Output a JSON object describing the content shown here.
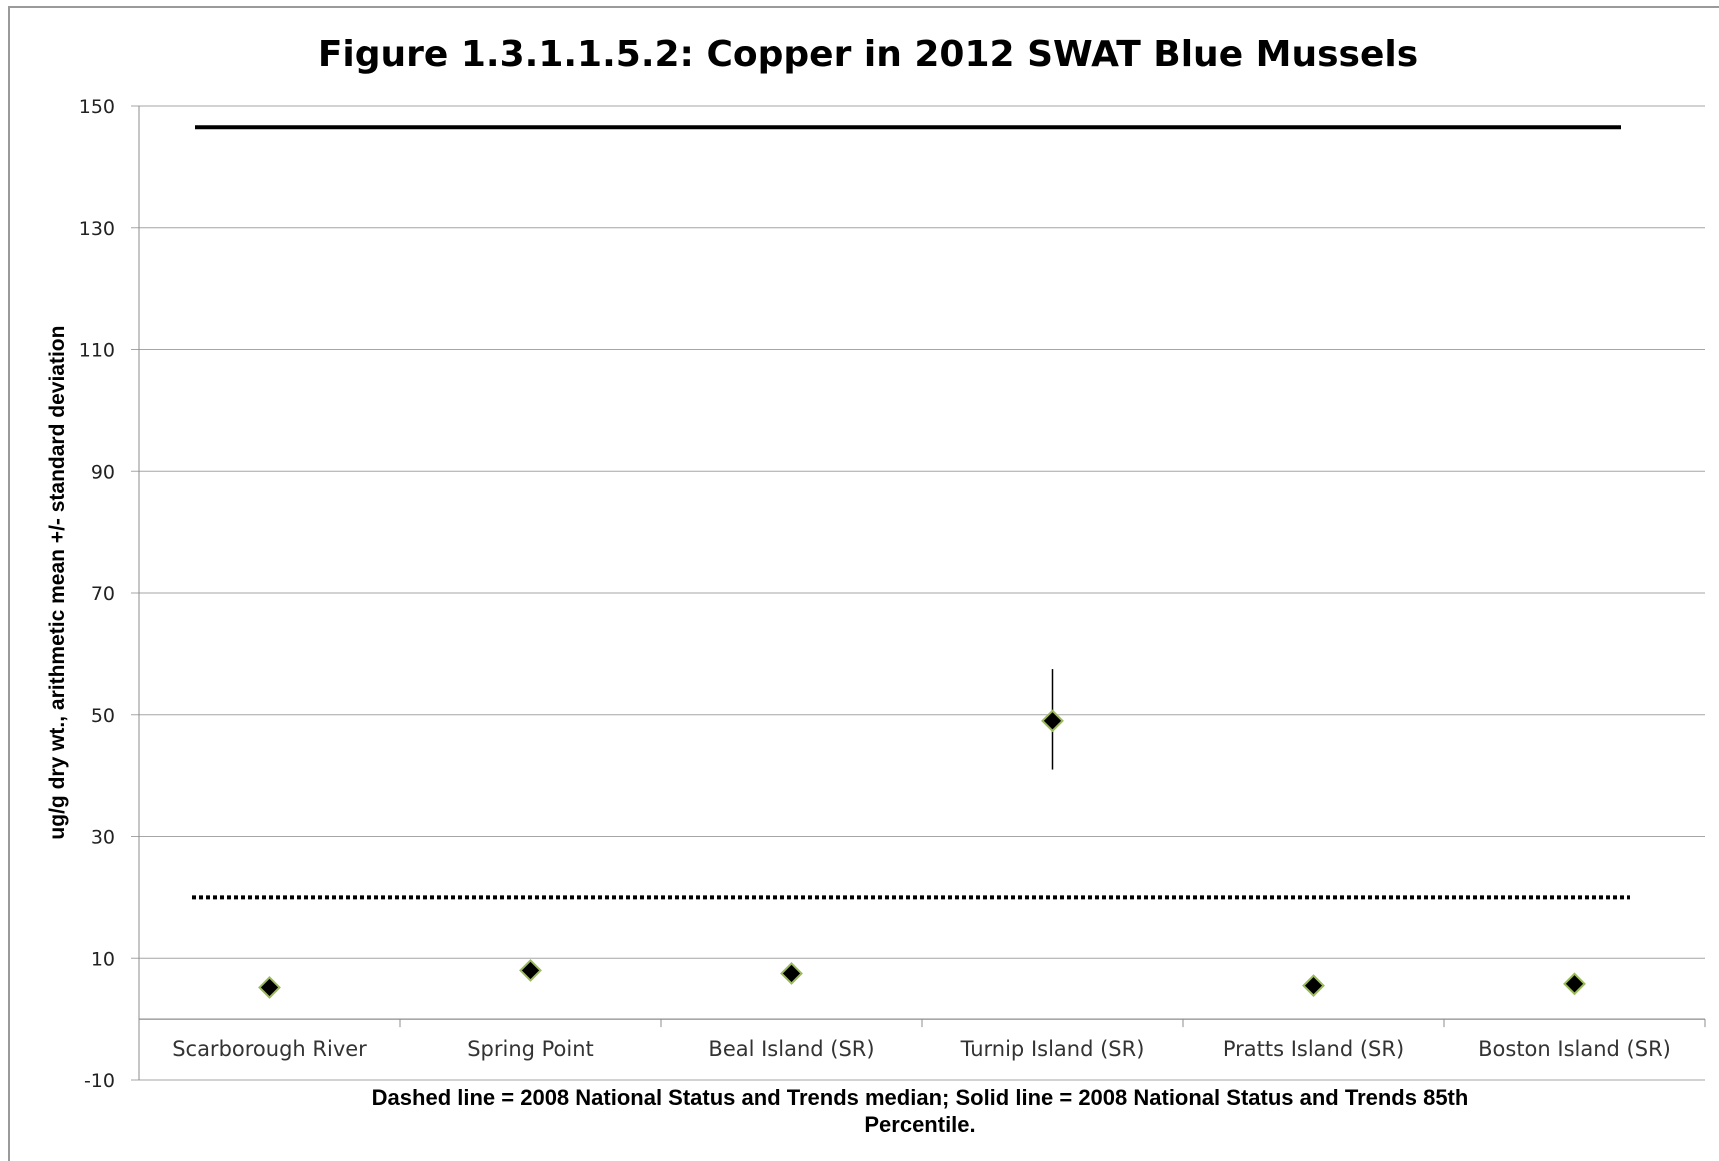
{
  "chart_data": {
    "type": "scatter",
    "title": "Figure 1.3.1.1.5.2:  Copper in 2012 SWAT Blue Mussels",
    "ylabel": "ug/g dry wt., arithmetic mean +/- standard deviation",
    "xlabel": "",
    "note_lines": [
      "Dashed line = 2008 National Status and Trends median; Solid line = 2008 National Status and Trends 85th",
      "Percentile."
    ],
    "categories": [
      "Scarborough River",
      "Spring Point",
      "Beal Island (SR)",
      "Turnip Island (SR)",
      "Pratts Island (SR)",
      "Boston Island (SR)"
    ],
    "values": [
      5.2,
      8.0,
      7.5,
      49.0,
      5.5,
      5.8
    ],
    "error_bars": [
      null,
      null,
      null,
      [
        41.0,
        57.5
      ],
      null,
      null
    ],
    "yticks": [
      150,
      130,
      110,
      90,
      70,
      50,
      30,
      10,
      -10
    ],
    "ylim": [
      -10,
      150
    ],
    "grid": "horizontal",
    "reference_lines": [
      {
        "style": "dotted",
        "value": 20
      },
      {
        "style": "solid",
        "value": 146.5
      }
    ],
    "colors": {
      "marker_fill": "#000000",
      "marker_edge": "#9bbb59",
      "grid": "#a6a6a6",
      "reference": "#000000"
    }
  }
}
